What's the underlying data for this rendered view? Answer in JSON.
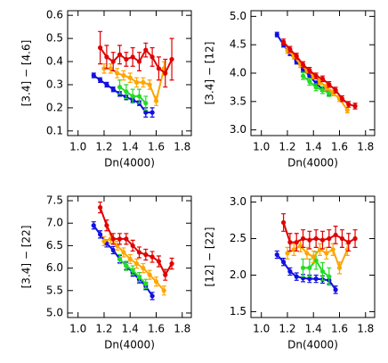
{
  "chart_data": [
    {
      "type": "line",
      "xlabel": "Dn(4000)",
      "ylabel": "[3.4] − [4.6]",
      "xlim": [
        0.92,
        1.87
      ],
      "xticks": [
        {
          "value": 1.0,
          "label": "1.0"
        },
        {
          "value": 1.2,
          "label": "1.2"
        },
        {
          "value": 1.4,
          "label": "1.4"
        },
        {
          "value": 1.6,
          "label": "1.6"
        },
        {
          "value": 1.8,
          "label": "1.8"
        }
      ],
      "ylim": [
        0.08,
        0.62
      ],
      "yticks": [
        0.1,
        0.2,
        0.3,
        0.4,
        0.5,
        0.6
      ],
      "series": [
        {
          "color": "#1010e0",
          "x": [
            1.12,
            1.17,
            1.22,
            1.27,
            1.32,
            1.37,
            1.42,
            1.47,
            1.52,
            1.57
          ],
          "values": [
            0.34,
            0.32,
            0.3,
            0.28,
            0.26,
            0.245,
            0.235,
            0.22,
            0.18,
            0.18
          ],
          "errors": [
            0.01,
            0.01,
            0.01,
            0.01,
            0.01,
            0.01,
            0.01,
            0.01,
            0.02,
            0.02
          ]
        },
        {
          "color": "#22dd22",
          "x": [
            1.32,
            1.37,
            1.42,
            1.47,
            1.52
          ],
          "values": [
            0.29,
            0.27,
            0.25,
            0.25,
            0.22
          ],
          "errors": [
            0.03,
            0.03,
            0.03,
            0.03,
            0.03
          ]
        },
        {
          "color": "#ffa500",
          "x": [
            1.2,
            1.25,
            1.3,
            1.35,
            1.4,
            1.45,
            1.5,
            1.55,
            1.6,
            1.66
          ],
          "values": [
            0.37,
            0.37,
            0.35,
            0.34,
            0.33,
            0.31,
            0.31,
            0.3,
            0.23,
            0.37
          ],
          "errors": [
            0.02,
            0.02,
            0.02,
            0.02,
            0.02,
            0.02,
            0.02,
            0.02,
            0.02,
            0.03
          ]
        },
        {
          "color": "#e00000",
          "x": [
            1.17,
            1.22,
            1.27,
            1.32,
            1.37,
            1.42,
            1.47,
            1.52,
            1.57,
            1.62,
            1.67,
            1.72
          ],
          "values": [
            0.46,
            0.42,
            0.4,
            0.43,
            0.41,
            0.42,
            0.4,
            0.45,
            0.42,
            0.37,
            0.35,
            0.41
          ],
          "errors": [
            0.07,
            0.05,
            0.04,
            0.04,
            0.03,
            0.04,
            0.04,
            0.03,
            0.04,
            0.05,
            0.06,
            0.09
          ]
        }
      ]
    },
    {
      "type": "line",
      "xlabel": "Dn(4000)",
      "ylabel": "[3.4] − [12]",
      "xlim": [
        0.92,
        1.87
      ],
      "xticks": [
        {
          "value": 1.0,
          "label": "1.0"
        },
        {
          "value": 1.2,
          "label": "1.2"
        },
        {
          "value": 1.4,
          "label": "1.4"
        },
        {
          "value": 1.6,
          "label": "1.6"
        },
        {
          "value": 1.8,
          "label": "1.8"
        }
      ],
      "ylim": [
        2.9,
        5.1
      ],
      "yticks": [
        {
          "value": 3.0,
          "label": "3.0"
        },
        3.5,
        {
          "value": 4.0,
          "label": "4.0"
        },
        4.5,
        {
          "value": 5.0,
          "label": "5.0"
        }
      ],
      "series": [
        {
          "color": "#1010e0",
          "x": [
            1.12,
            1.17,
            1.22,
            1.27,
            1.32,
            1.37,
            1.42,
            1.47,
            1.52
          ],
          "values": [
            4.68,
            4.5,
            4.35,
            4.2,
            4.07,
            3.95,
            3.82,
            3.72,
            3.65
          ],
          "errors": [
            0.04,
            0.04,
            0.04,
            0.04,
            0.04,
            0.04,
            0.04,
            0.04,
            0.04
          ]
        },
        {
          "color": "#22dd22",
          "x": [
            1.32,
            1.37,
            1.42,
            1.47,
            1.52
          ],
          "values": [
            3.95,
            3.85,
            3.75,
            3.7,
            3.65
          ],
          "errors": [
            0.06,
            0.06,
            0.06,
            0.06,
            0.06
          ]
        },
        {
          "color": "#ffa500",
          "x": [
            1.2,
            1.25,
            1.3,
            1.35,
            1.4,
            1.45,
            1.5,
            1.55,
            1.6,
            1.66
          ],
          "values": [
            4.4,
            4.3,
            4.15,
            4.05,
            3.95,
            3.85,
            3.75,
            3.65,
            3.55,
            3.35
          ],
          "errors": [
            0.05,
            0.05,
            0.05,
            0.05,
            0.05,
            0.05,
            0.05,
            0.05,
            0.05,
            0.05
          ]
        },
        {
          "color": "#e00000",
          "x": [
            1.17,
            1.22,
            1.27,
            1.32,
            1.37,
            1.42,
            1.47,
            1.52,
            1.57,
            1.62,
            1.67,
            1.72
          ],
          "values": [
            4.55,
            4.42,
            4.3,
            4.15,
            4.05,
            3.95,
            3.9,
            3.8,
            3.7,
            3.55,
            3.45,
            3.42
          ],
          "errors": [
            0.05,
            0.05,
            0.05,
            0.05,
            0.05,
            0.05,
            0.05,
            0.05,
            0.05,
            0.05,
            0.05,
            0.05
          ]
        }
      ]
    },
    {
      "type": "line",
      "xlabel": "Dn(4000)",
      "ylabel": "[3.4] − [22]",
      "xlim": [
        0.92,
        1.87
      ],
      "xticks": [
        {
          "value": 1.0,
          "label": "1.0"
        },
        {
          "value": 1.2,
          "label": "1.2"
        },
        {
          "value": 1.4,
          "label": "1.4"
        },
        {
          "value": 1.6,
          "label": "1.6"
        },
        {
          "value": 1.8,
          "label": "1.8"
        }
      ],
      "ylim": [
        4.9,
        7.6
      ],
      "yticks": [
        {
          "value": 5.0,
          "label": "5.0"
        },
        5.5,
        {
          "value": 6.0,
          "label": "6.0"
        },
        6.5,
        {
          "value": 7.0,
          "label": "7.0"
        },
        7.5
      ],
      "series": [
        {
          "color": "#1010e0",
          "x": [
            1.12,
            1.17,
            1.22,
            1.27,
            1.32,
            1.37,
            1.42,
            1.47,
            1.52,
            1.57
          ],
          "values": [
            6.95,
            6.75,
            6.55,
            6.4,
            6.2,
            6.05,
            5.9,
            5.75,
            5.6,
            5.38
          ],
          "errors": [
            0.08,
            0.08,
            0.08,
            0.08,
            0.08,
            0.08,
            0.08,
            0.08,
            0.08,
            0.08
          ]
        },
        {
          "color": "#22dd22",
          "x": [
            1.32,
            1.37,
            1.42,
            1.47,
            1.52
          ],
          "values": [
            6.2,
            6.05,
            5.95,
            5.8,
            5.65
          ],
          "errors": [
            0.1,
            0.1,
            0.1,
            0.1,
            0.1
          ]
        },
        {
          "color": "#ffa500",
          "x": [
            1.2,
            1.25,
            1.3,
            1.35,
            1.4,
            1.45,
            1.5,
            1.55,
            1.6,
            1.66
          ],
          "values": [
            6.6,
            6.65,
            6.5,
            6.35,
            6.2,
            6.1,
            6.0,
            5.85,
            5.7,
            5.5
          ],
          "errors": [
            0.1,
            0.1,
            0.1,
            0.1,
            0.1,
            0.1,
            0.1,
            0.1,
            0.1,
            0.1
          ]
        },
        {
          "color": "#e00000",
          "x": [
            1.17,
            1.22,
            1.27,
            1.32,
            1.37,
            1.42,
            1.47,
            1.52,
            1.57,
            1.62,
            1.67,
            1.72
          ],
          "values": [
            7.35,
            6.95,
            6.65,
            6.65,
            6.65,
            6.5,
            6.35,
            6.3,
            6.25,
            6.15,
            5.85,
            6.1
          ],
          "errors": [
            0.12,
            0.12,
            0.12,
            0.12,
            0.12,
            0.12,
            0.12,
            0.12,
            0.12,
            0.12,
            0.12,
            0.12
          ]
        }
      ]
    },
    {
      "type": "line",
      "xlabel": "Dn(4000)",
      "ylabel": "[12] − [22]",
      "xlim": [
        0.92,
        1.87
      ],
      "xticks": [
        {
          "value": 1.0,
          "label": "1.0"
        },
        {
          "value": 1.2,
          "label": "1.2"
        },
        {
          "value": 1.4,
          "label": "1.4"
        },
        {
          "value": 1.6,
          "label": "1.6"
        },
        {
          "value": 1.8,
          "label": "1.8"
        }
      ],
      "ylim": [
        1.42,
        3.08
      ],
      "yticks": [
        1.5,
        {
          "value": 2.0,
          "label": "2.0"
        },
        2.5,
        {
          "value": 3.0,
          "label": "3.0"
        }
      ],
      "series": [
        {
          "color": "#1010e0",
          "x": [
            1.12,
            1.17,
            1.22,
            1.27,
            1.32,
            1.37,
            1.42,
            1.47,
            1.52,
            1.57
          ],
          "values": [
            2.28,
            2.18,
            2.05,
            1.98,
            1.96,
            1.95,
            1.95,
            1.94,
            1.93,
            1.8
          ],
          "errors": [
            0.05,
            0.05,
            0.05,
            0.05,
            0.05,
            0.05,
            0.05,
            0.05,
            0.05,
            0.05
          ]
        },
        {
          "color": "#22dd22",
          "x": [
            1.32,
            1.37,
            1.42,
            1.47,
            1.52
          ],
          "values": [
            2.1,
            2.1,
            2.2,
            2.05,
            1.98
          ],
          "errors": [
            0.12,
            0.12,
            0.12,
            0.12,
            0.12
          ]
        },
        {
          "color": "#ffa500",
          "x": [
            1.2,
            1.25,
            1.3,
            1.35,
            1.4,
            1.45,
            1.5,
            1.55,
            1.6,
            1.66
          ],
          "values": [
            2.3,
            2.35,
            2.4,
            2.3,
            2.25,
            2.35,
            2.3,
            2.35,
            2.1,
            2.35
          ],
          "errors": [
            0.08,
            0.08,
            0.08,
            0.08,
            0.08,
            0.08,
            0.08,
            0.08,
            0.08,
            0.08
          ]
        },
        {
          "color": "#e00000",
          "x": [
            1.17,
            1.22,
            1.27,
            1.32,
            1.37,
            1.42,
            1.47,
            1.52,
            1.57,
            1.62,
            1.67,
            1.72
          ],
          "values": [
            2.72,
            2.45,
            2.45,
            2.5,
            2.48,
            2.5,
            2.48,
            2.5,
            2.55,
            2.5,
            2.45,
            2.5
          ],
          "errors": [
            0.12,
            0.12,
            0.12,
            0.12,
            0.12,
            0.12,
            0.12,
            0.12,
            0.12,
            0.12,
            0.12,
            0.12
          ]
        }
      ]
    }
  ]
}
